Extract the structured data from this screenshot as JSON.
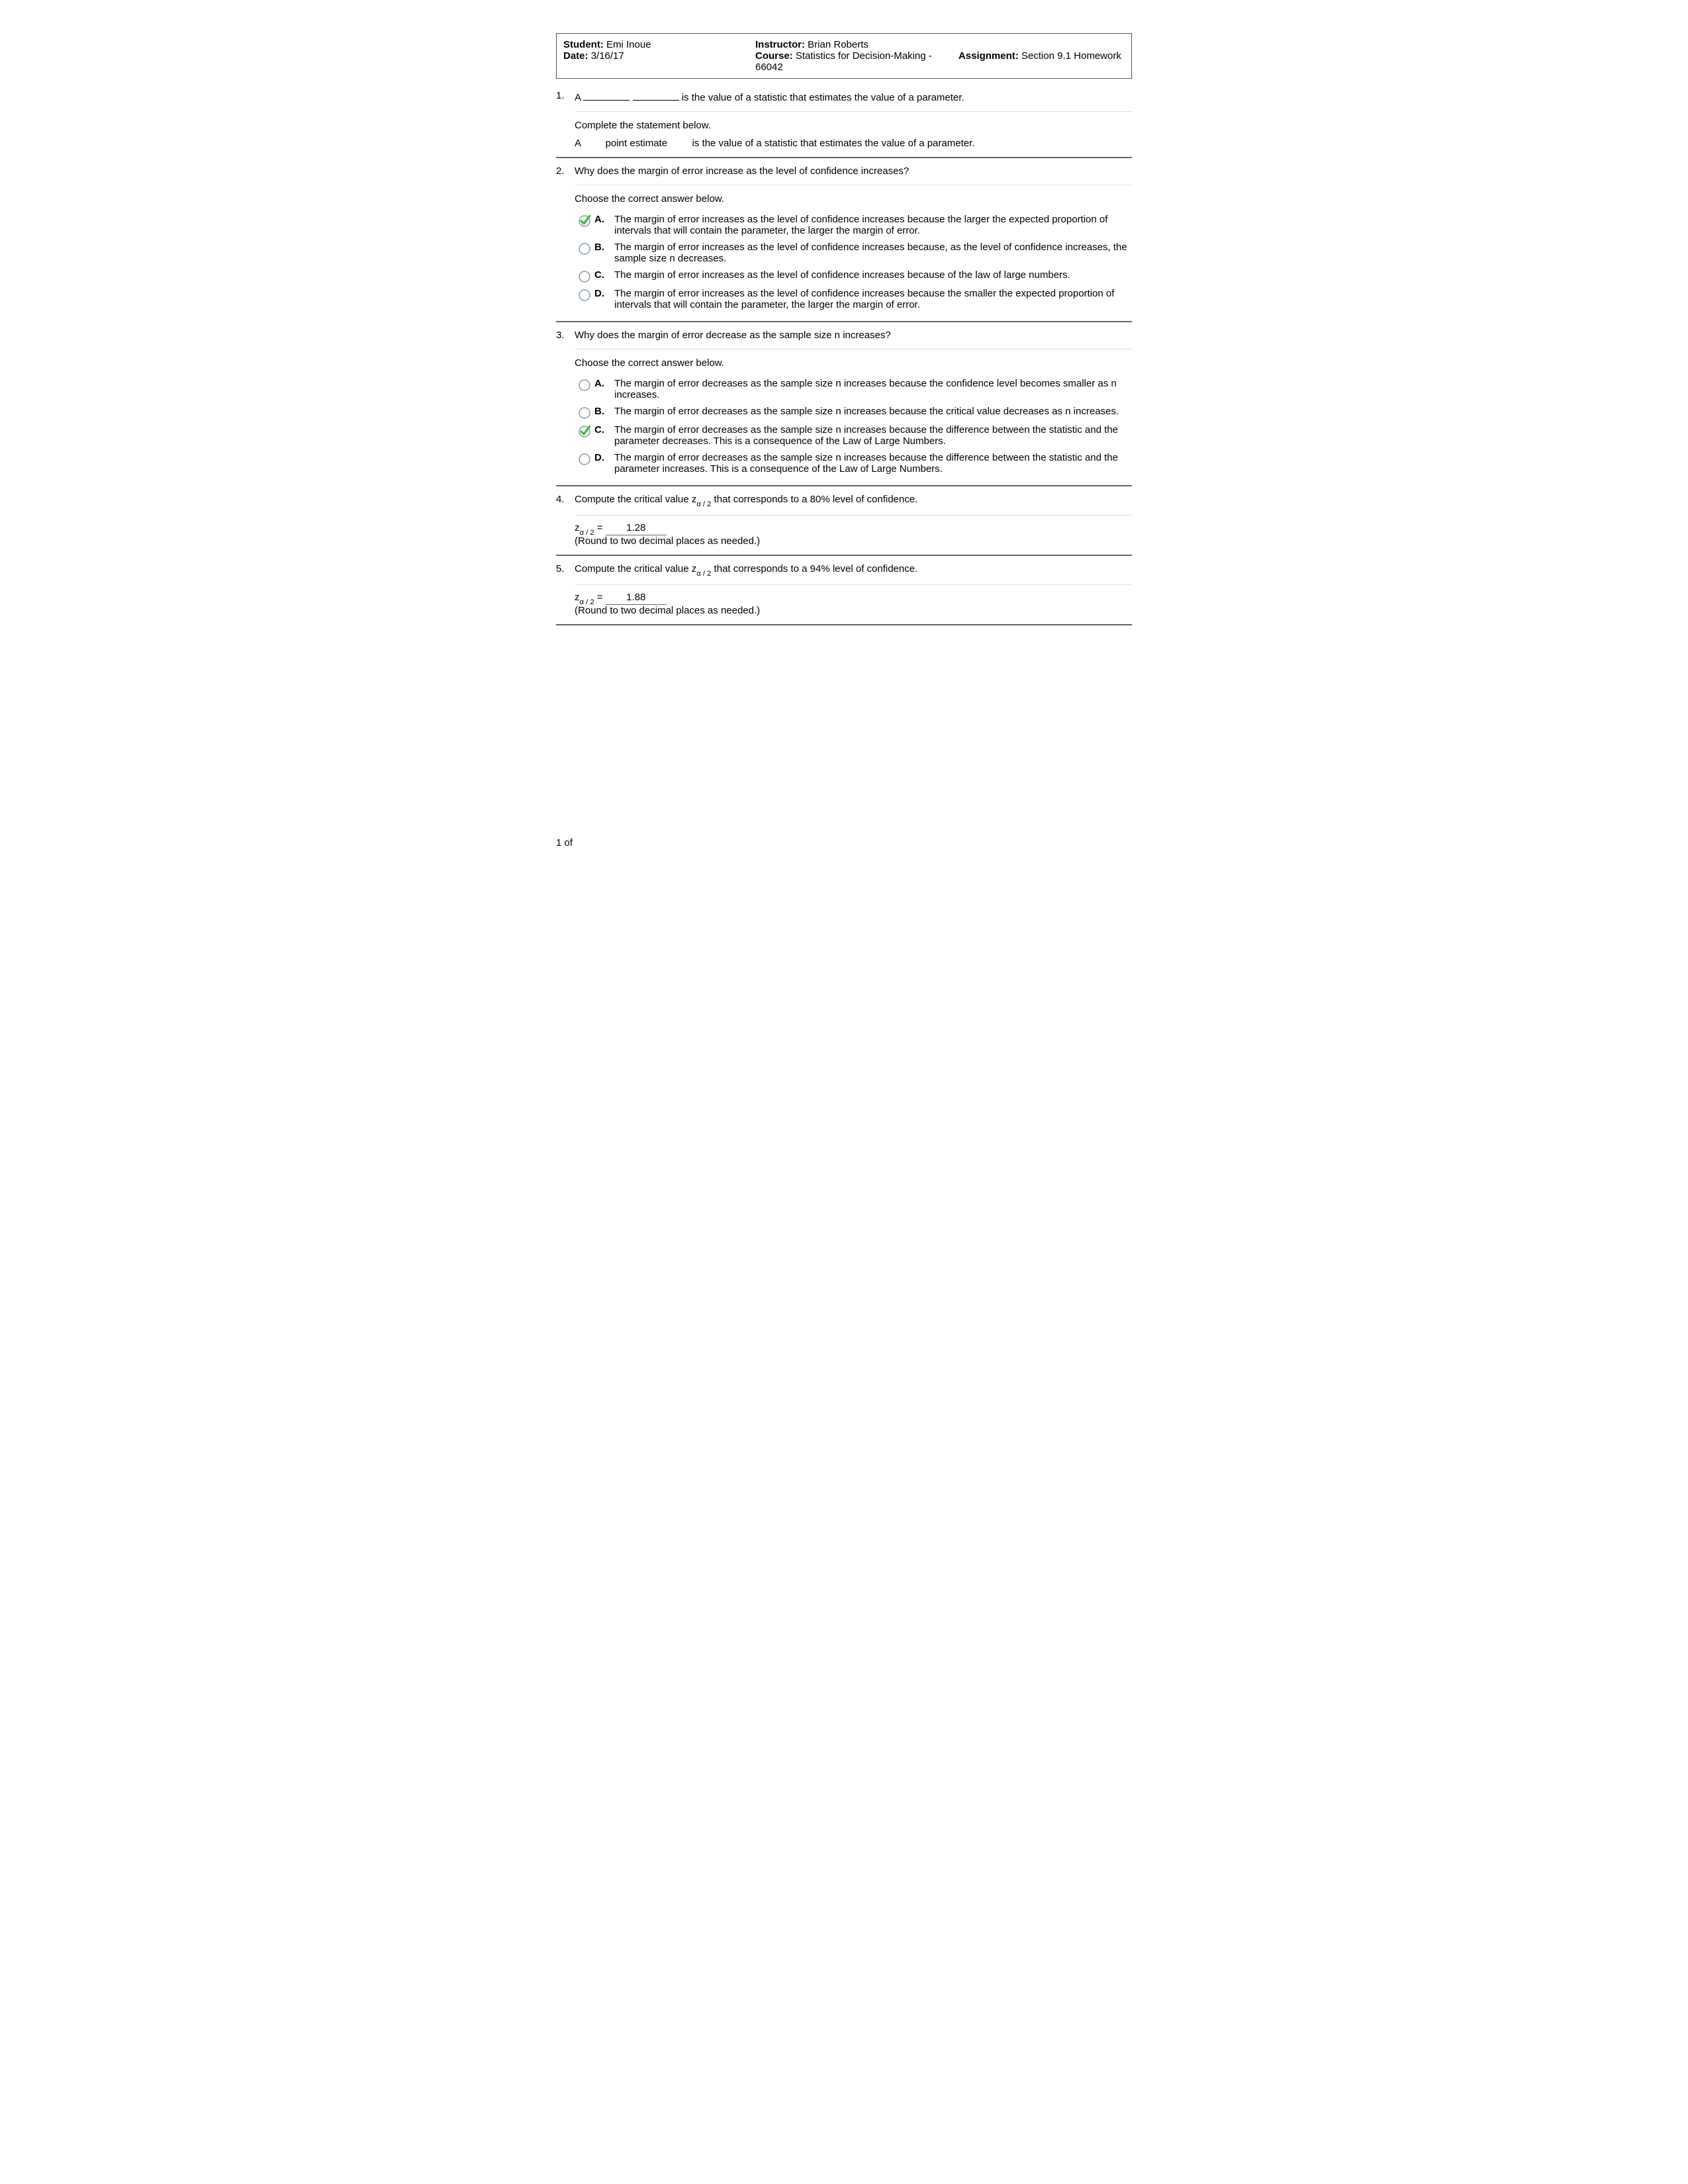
{
  "header": {
    "student_label": "Student:",
    "student_name": "Emi Inoue",
    "date_label": "Date:",
    "date_value": "3/16/17",
    "instructor_label": "Instructor:",
    "instructor_name": "Brian Roberts",
    "course_label": "Course:",
    "course_value": "Statistics for Decision-Making - 66042",
    "assignment_label": "Assignment:",
    "assignment_value": "Section 9.1 Homework"
  },
  "q1": {
    "num": "1.",
    "prompt_pre": "A",
    "prompt_post": "is the value of a statistic that estimates the value of a parameter.",
    "sub_prompt": "Complete the statement below.",
    "ans_pre": "A",
    "ans_fill": "point estimate",
    "ans_post": "is the value of a statistic that estimates the value of a parameter."
  },
  "q2": {
    "num": "2.",
    "prompt": "Why does the margin of error increase as the level of confidence increases?",
    "sub_prompt": "Choose the correct answer below.",
    "options": [
      {
        "letter": "A.",
        "text": "The margin of error increases as the level of confidence increases because the larger the expected proportion of intervals that will contain the parameter, the larger the margin of error.",
        "selected": true
      },
      {
        "letter": "B.",
        "text": "The margin of error increases as the level of confidence increases because, as the level of confidence increases, the sample size n decreases.",
        "selected": false
      },
      {
        "letter": "C.",
        "text": "The margin of error increases as the level of confidence increases because of the law of large numbers.",
        "selected": false
      },
      {
        "letter": "D.",
        "text": "The margin of error increases as the level of confidence increases because the smaller the expected proportion of intervals that will contain the parameter, the larger the margin of error.",
        "selected": false
      }
    ]
  },
  "q3": {
    "num": "3.",
    "prompt": "Why does the margin of error decrease as the sample size n increases?",
    "sub_prompt": "Choose the correct answer below.",
    "options": [
      {
        "letter": "A.",
        "text": "The margin of error decreases as the sample size n increases because the confidence level becomes smaller as n increases.",
        "selected": false
      },
      {
        "letter": "B.",
        "text": "The margin of error decreases as the sample size n increases because the critical value decreases as n increases.",
        "selected": false
      },
      {
        "letter": "C.",
        "text": "The margin of error decreases as the sample size n increases because the difference between the statistic and the parameter decreases. This is a consequence of the Law of Large Numbers.",
        "selected": true
      },
      {
        "letter": "D.",
        "text": "The margin of error decreases as the sample size n increases because the difference between the statistic and the parameter increases. This is a consequence of the Law of Large Numbers.",
        "selected": false
      }
    ]
  },
  "q4": {
    "num": "4.",
    "prompt_pre": "Compute the critical value z",
    "prompt_sub": "α / 2",
    "prompt_post": " that corresponds to a 80% level of confidence.",
    "answer_pre": "z",
    "answer_sub": "α / 2",
    "answer_eq": " = ",
    "answer_value": "1.28",
    "note": "(Round to two decimal places as needed.)"
  },
  "q5": {
    "num": "5.",
    "prompt_pre": "Compute the critical value z",
    "prompt_sub": "α / 2",
    "prompt_post": " that corresponds to a 94% level of confidence.",
    "answer_pre": "z",
    "answer_sub": "α / 2",
    "answer_eq": " = ",
    "answer_value": "1.88",
    "note": "(Round to two decimal places as needed.)"
  },
  "footer": {
    "page": "1 of"
  },
  "colors": {
    "check_green": "#3cb043",
    "radio_gray": "#8a9aa8"
  }
}
